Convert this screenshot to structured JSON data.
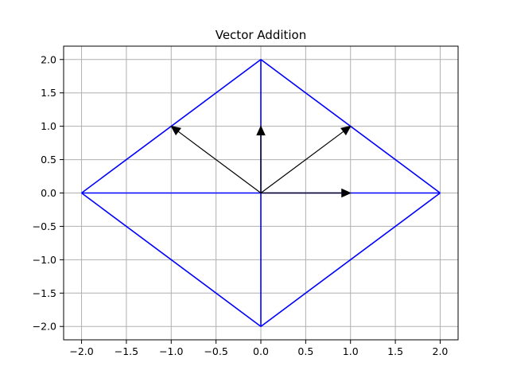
{
  "chart_data": {
    "type": "line",
    "title": "Vector Addition",
    "xlabel": "",
    "ylabel": "",
    "xlim": [
      -2.2,
      2.2
    ],
    "ylim": [
      -2.2,
      2.2
    ],
    "grid": true,
    "xticks": [
      "−2.0",
      "−1.5",
      "−1.0",
      "−0.5",
      "0.0",
      "0.5",
      "1.0",
      "1.5",
      "2.0"
    ],
    "xtick_values": [
      -2.0,
      -1.5,
      -1.0,
      -0.5,
      0.0,
      0.5,
      1.0,
      1.5,
      2.0
    ],
    "yticks": [
      "−2.0",
      "−1.5",
      "−1.0",
      "−0.5",
      "0.0",
      "0.5",
      "1.0",
      "1.5",
      "2.0"
    ],
    "ytick_values": [
      -2.0,
      -1.5,
      -1.0,
      -0.5,
      0.0,
      0.5,
      1.0,
      1.5,
      2.0
    ],
    "series": [
      {
        "color": "#0000ff",
        "segments": [
          {
            "x": [
              0,
              2
            ],
            "y": [
              2,
              0
            ]
          },
          {
            "x": [
              2,
              0
            ],
            "y": [
              0,
              -2
            ]
          },
          {
            "x": [
              0,
              -2
            ],
            "y": [
              -2,
              0
            ]
          },
          {
            "x": [
              -2,
              0
            ],
            "y": [
              0,
              2
            ]
          },
          {
            "x": [
              -2,
              2
            ],
            "y": [
              0,
              0
            ]
          },
          {
            "x": [
              0,
              0
            ],
            "y": [
              -2,
              2
            ]
          }
        ]
      }
    ],
    "arrows": [
      {
        "x": 0,
        "y": 0,
        "dx": 1,
        "dy": 0,
        "color": "#000000"
      },
      {
        "x": 0,
        "y": 0,
        "dx": 0,
        "dy": 1,
        "color": "#000000"
      },
      {
        "x": 0,
        "y": 0,
        "dx": 1,
        "dy": 1,
        "color": "#000000"
      },
      {
        "x": 0,
        "y": 0,
        "dx": -1,
        "dy": 1,
        "color": "#000000"
      }
    ],
    "colors": {
      "grid": "#b0b0b0",
      "axes": "#000000"
    }
  }
}
